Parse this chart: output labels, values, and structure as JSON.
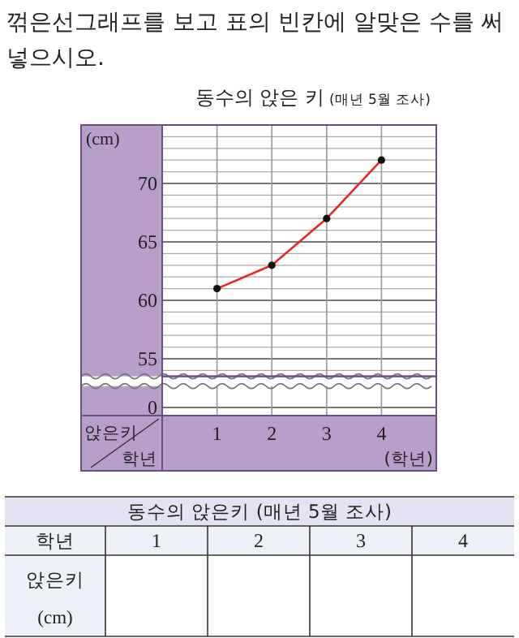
{
  "chart_data": {
    "type": "line",
    "title": "동수의 앉은 키",
    "subtitle": "(매년 5월 조사)",
    "xlabel": "(학년)",
    "ylabel": "(cm)",
    "categories": [
      "1",
      "2",
      "3",
      "4"
    ],
    "series": [
      {
        "color": "#e8262a",
        "values": [
          61,
          63,
          67,
          72
        ]
      }
    ],
    "ylim": [
      53.5,
      75
    ],
    "yticks": [
      55,
      60,
      65,
      70
    ],
    "grid": true,
    "marker": "circle",
    "annotations": [
      "꺾은선그래프를 보고 표의 빈칸에 알맞은 수를 써넣으시오.",
      "앉은키",
      "학년",
      "동수의 앉은키 (매년 5월 조사)",
      "학년",
      "앉은키",
      "(cm)",
      "0"
    ]
  }
}
